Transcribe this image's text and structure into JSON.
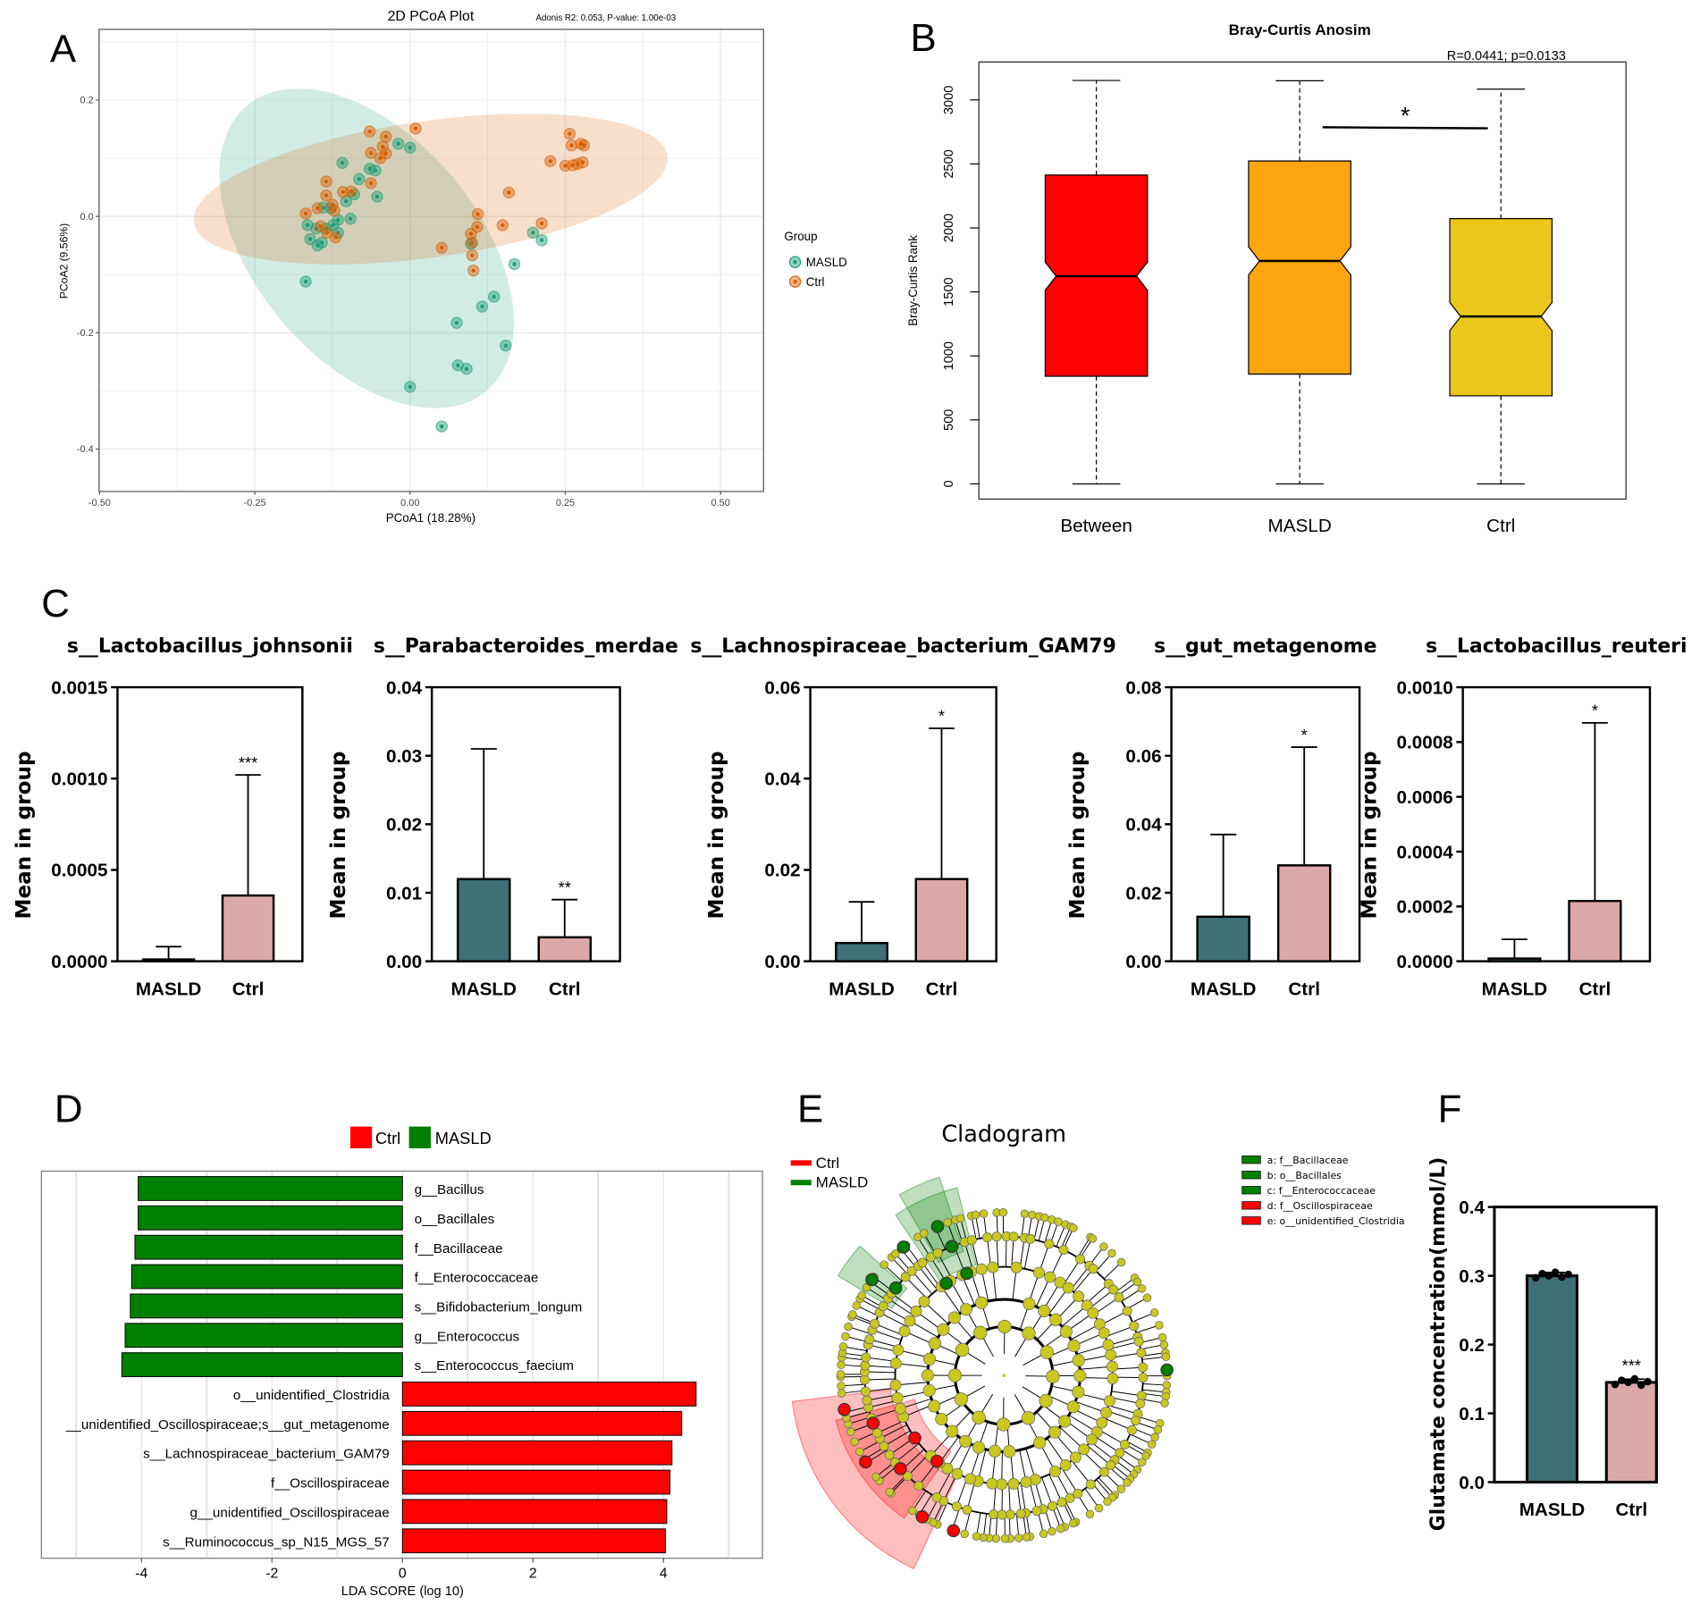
{
  "panel_labels": [
    "A",
    "B",
    "C",
    "D",
    "E",
    "F"
  ],
  "chart_data": [
    {
      "type": "scatter",
      "title": "2D PCoA Plot",
      "subtitle": "Adonis R2: 0.053, P-value: 1.00e-03",
      "xlabel": "PCoA1 (18.28%)",
      "ylabel": "PCoA2 (9.56%)",
      "xlim": [
        -0.5,
        0.57
      ],
      "ylim": [
        -0.47,
        0.32
      ],
      "grid": true,
      "xticks": [
        -0.5,
        -0.25,
        0,
        0.25,
        0.5
      ],
      "xtick_labels": [
        "-0.50",
        "-0.25",
        "0.00",
        "0.25",
        "0.50"
      ],
      "yticks": [
        0.2,
        0,
        -0.2,
        -0.4
      ],
      "ytick_labels": [
        "0.2",
        "0.0",
        "-0.2",
        "-0.4"
      ],
      "legend_title": "Group",
      "legend_position": "right",
      "series": [
        {
          "name": "MASLD",
          "color": "#1b9e77",
          "ellipse": {
            "center": [
              -0.07,
              -0.055
            ],
            "semi_axes": [
              0.3,
              0.18
            ],
            "angle_deg": 50
          },
          "points": [
            [
              -0.168,
              -0.112
            ],
            [
              0,
              -0.293
            ],
            [
              0.051,
              -0.361
            ],
            [
              0.075,
              -0.183
            ],
            [
              0.077,
              -0.256
            ],
            [
              0.091,
              -0.262
            ],
            [
              0.116,
              -0.155
            ],
            [
              0.135,
              -0.138
            ],
            [
              0.154,
              -0.222
            ],
            [
              0.168,
              -0.082
            ],
            [
              0.198,
              -0.028
            ],
            [
              0.212,
              -0.041
            ],
            [
              0,
              0.118
            ],
            [
              -0.019,
              0.125
            ],
            [
              -0.109,
              0.092
            ],
            [
              -0.082,
              0.064
            ],
            [
              -0.065,
              0.082
            ],
            [
              -0.056,
              0.079
            ],
            [
              -0.053,
              0.034
            ],
            [
              -0.103,
              0.026
            ],
            [
              -0.116,
              -0.006
            ],
            [
              -0.124,
              -0.015
            ],
            [
              -0.135,
              -0.021
            ],
            [
              -0.151,
              -0.021
            ],
            [
              -0.165,
              -0.015
            ],
            [
              -0.161,
              -0.039
            ],
            [
              -0.142,
              -0.045
            ],
            [
              -0.149,
              -0.05
            ],
            [
              -0.116,
              -0.028
            ],
            [
              -0.096,
              -0.004
            ],
            [
              0.098,
              -0.047
            ],
            [
              -0.09,
              0.038
            ],
            [
              -0.14,
              0.015
            ],
            [
              -0.128,
              0.014
            ]
          ]
        },
        {
          "name": "Ctrl",
          "color": "#d95f02",
          "ellipse": {
            "center": [
              0.033,
              0.047
            ],
            "semi_axes": [
              0.385,
              0.11
            ],
            "angle_deg": -8
          },
          "points": [
            [
              0.009,
              0.151
            ],
            [
              -0.065,
              0.146
            ],
            [
              -0.039,
              0.137
            ],
            [
              -0.044,
              0.12
            ],
            [
              -0.039,
              0.108
            ],
            [
              -0.063,
              0.109
            ],
            [
              -0.048,
              0.1
            ],
            [
              -0.063,
              0.057
            ],
            [
              -0.095,
              0.043
            ],
            [
              -0.108,
              0.042
            ],
            [
              -0.135,
              0.06
            ],
            [
              -0.135,
              0.036
            ],
            [
              -0.149,
              0.014
            ],
            [
              -0.168,
              0.005
            ],
            [
              -0.144,
              -0.017
            ],
            [
              -0.134,
              -0.028
            ],
            [
              -0.12,
              -0.036
            ],
            [
              -0.125,
              0.02
            ],
            [
              -0.122,
              0.01
            ],
            [
              0.051,
              -0.054
            ],
            [
              0.098,
              -0.03
            ],
            [
              0.1,
              -0.045
            ],
            [
              0.108,
              -0.018
            ],
            [
              0.109,
              0.004
            ],
            [
              0.1,
              -0.067
            ],
            [
              0.102,
              -0.093
            ],
            [
              0.149,
              -0.015
            ],
            [
              0.159,
              0.041
            ],
            [
              0.212,
              -0.012
            ],
            [
              0.226,
              0.095
            ],
            [
              0.257,
              0.142
            ],
            [
              0.26,
              0.122
            ],
            [
              0.275,
              0.125
            ],
            [
              0.28,
              0.122
            ],
            [
              0.25,
              0.087
            ],
            [
              0.262,
              0.088
            ],
            [
              0.27,
              0.09
            ],
            [
              0.278,
              0.093
            ]
          ]
        }
      ]
    },
    {
      "type": "box",
      "title": "Bray-Curtis Anosim",
      "annotation": "R=0.0441; p=0.0133",
      "ylabel": "Bray-Curtis Rank",
      "ylim": [
        0,
        3250
      ],
      "yticks": [
        0,
        500,
        1000,
        1500,
        2000,
        2500,
        3000
      ],
      "ytick_labels": [
        "0",
        "500",
        "1000",
        "1500",
        "2000",
        "2500",
        "3000"
      ],
      "significance": {
        "from": "MASLD",
        "to": "Ctrl",
        "label": "*",
        "y": 2790
      },
      "boxes": [
        {
          "name": "Between",
          "color": "#ff0000",
          "min": 0,
          "q1": 841,
          "median": 1623,
          "q3": 2413,
          "max": 3152
        },
        {
          "name": "MASLD",
          "color": "#ffa510",
          "min": 0,
          "q1": 858,
          "median": 1742,
          "q3": 2523,
          "max": 3150
        },
        {
          "name": "Ctrl",
          "color": "#eac71a",
          "min": 0,
          "q1": 688,
          "median": 1308,
          "q3": 2073,
          "max": 3084
        }
      ]
    },
    {
      "type": "bar",
      "ylabel": "Mean in group",
      "categories": [
        "MASLD",
        "Ctrl"
      ],
      "colors": [
        "#3e7075",
        "#dba9a8"
      ],
      "charts": [
        {
          "title": "s__Lactobacillus_johnsonii",
          "ylim": [
            0,
            0.0015
          ],
          "yticks": [
            0,
            0.0005,
            0.001,
            0.0015
          ],
          "ytick_labels": [
            "0.0000",
            "0.0005",
            "0.0010",
            "0.0015"
          ],
          "values": [
            1e-05,
            0.00036
          ],
          "errors_upper": [
            8e-05,
            0.00102
          ],
          "significance": "***"
        },
        {
          "title": "s__Parabacteroides_merdae",
          "ylim": [
            0,
            0.04
          ],
          "yticks": [
            0,
            0.01,
            0.02,
            0.03,
            0.04
          ],
          "ytick_labels": [
            "0.00",
            "0.01",
            "0.02",
            "0.03",
            "0.04"
          ],
          "values": [
            0.012,
            0.0035
          ],
          "errors_upper": [
            0.031,
            0.009
          ],
          "significance": "**"
        },
        {
          "title": "s__Lachnospiraceae_bacterium_GAM79",
          "ylim": [
            0,
            0.06
          ],
          "yticks": [
            0,
            0.02,
            0.04,
            0.06
          ],
          "ytick_labels": [
            "0.00",
            "0.02",
            "0.04",
            "0.06"
          ],
          "values": [
            0.004,
            0.018
          ],
          "errors_upper": [
            0.013,
            0.051
          ],
          "significance": "*"
        },
        {
          "title": "s__gut_metagenome",
          "ylim": [
            0,
            0.08
          ],
          "yticks": [
            0,
            0.02,
            0.04,
            0.06,
            0.08
          ],
          "ytick_labels": [
            "0.00",
            "0.02",
            "0.04",
            "0.06",
            "0.08"
          ],
          "values": [
            0.013,
            0.028
          ],
          "errors_upper": [
            0.037,
            0.0625
          ],
          "significance": "*"
        },
        {
          "title": "s__Lactobacillus_reuteri",
          "ylim": [
            0,
            0.001
          ],
          "yticks": [
            0,
            0.0002,
            0.0004,
            0.0006,
            0.0008,
            0.001
          ],
          "ytick_labels": [
            "0.0000",
            "0.0002",
            "0.0004",
            "0.0006",
            "0.0008",
            "0.0010"
          ],
          "values": [
            1e-05,
            0.00022
          ],
          "errors_upper": [
            8e-05,
            0.00087
          ],
          "significance": "*"
        }
      ]
    },
    {
      "type": "bar",
      "orientation": "horizontal",
      "xlabel": "LDA SCORE (log 10)",
      "xlim": [
        -5.5,
        5.5
      ],
      "xticks": [
        -4,
        -2,
        0,
        2,
        4
      ],
      "xtick_labels": [
        "-4",
        "-2",
        "0",
        "2",
        "4"
      ],
      "legend": [
        {
          "name": "Ctrl",
          "color": "#ff0000"
        },
        {
          "name": "MASLD",
          "color": "#008000"
        }
      ],
      "legend_position": "top",
      "bars": [
        {
          "label": "g__Bacillus",
          "value": -4.05,
          "group": "MASLD"
        },
        {
          "label": "o__Bacillales",
          "value": -4.05,
          "group": "MASLD"
        },
        {
          "label": "f__Bacillaceae",
          "value": -4.1,
          "group": "MASLD"
        },
        {
          "label": "f__Enterococcaceae",
          "value": -4.15,
          "group": "MASLD"
        },
        {
          "label": "s__Bifidobacterium_longum",
          "value": -4.17,
          "group": "MASLD"
        },
        {
          "label": "g__Enterococcus",
          "value": -4.25,
          "group": "MASLD"
        },
        {
          "label": "s__Enterococcus_faecium",
          "value": -4.3,
          "group": "MASLD"
        },
        {
          "label": "o__unidentified_Clostridia",
          "value": 4.5,
          "group": "Ctrl"
        },
        {
          "label": "__unidentified_Oscillospiraceae;s__gut_metagenome",
          "value": 4.28,
          "group": "Ctrl"
        },
        {
          "label": "s__Lachnospiraceae_bacterium_GAM79",
          "value": 4.13,
          "group": "Ctrl"
        },
        {
          "label": "f__Oscillospiraceae",
          "value": 4.1,
          "group": "Ctrl"
        },
        {
          "label": "g__unidentified_Oscillospiraceae",
          "value": 4.05,
          "group": "Ctrl"
        },
        {
          "label": "s__Ruminococcus_sp_N15_MGS_57",
          "value": 4.03,
          "group": "Ctrl"
        }
      ]
    },
    {
      "type": "cladogram",
      "title": "Cladogram",
      "legend": [
        {
          "name": "Ctrl",
          "color": "#ff0000"
        },
        {
          "name": "MASLD",
          "color": "#008000"
        }
      ],
      "node_color": "#c8c81e",
      "clades": [
        {
          "key": "a",
          "label": "a: f__Bacillaceae",
          "color": "#008000"
        },
        {
          "key": "b",
          "label": "b: o__Bacillales",
          "color": "#008000"
        },
        {
          "key": "c",
          "label": "c: f__Enterococcaceae",
          "color": "#008000"
        },
        {
          "key": "d",
          "label": "d: f__Oscillospiraceae",
          "color": "#ff0000"
        },
        {
          "key": "e",
          "label": "e: o__unidentified_Clostridia",
          "color": "#ff0000"
        }
      ]
    },
    {
      "type": "bar",
      "ylabel": "Glutamate concentration(mmol/L)",
      "categories": [
        "MASLD",
        "Ctrl"
      ],
      "colors": [
        "#3e7075",
        "#dba9a8"
      ],
      "ylim": [
        0,
        0.4
      ],
      "yticks": [
        0,
        0.1,
        0.2,
        0.3,
        0.4
      ],
      "ytick_labels": [
        "0.0",
        "0.1",
        "0.2",
        "0.3",
        "0.4"
      ],
      "values": [
        0.3,
        0.145
      ],
      "points": [
        [
          0.297,
          0.303,
          0.3,
          0.305,
          0.298,
          0.302
        ],
        [
          0.142,
          0.148,
          0.145,
          0.15,
          0.141,
          0.146
        ]
      ],
      "significance": [
        "",
        "***"
      ]
    }
  ]
}
